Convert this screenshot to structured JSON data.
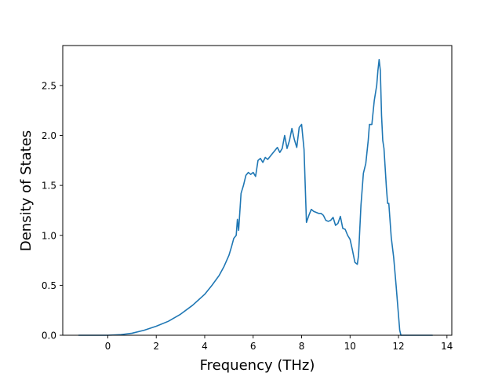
{
  "chart_data": {
    "type": "line",
    "title": "",
    "xlabel": "Frequency (THz)",
    "ylabel": "Density of States",
    "xlim": [
      -1.86,
      14.2
    ],
    "ylim": [
      0,
      2.9
    ],
    "xticks": [
      0,
      2,
      4,
      6,
      8,
      10,
      12,
      14
    ],
    "xtick_labels": [
      "0",
      "2",
      "4",
      "6",
      "8",
      "10",
      "12",
      "14"
    ],
    "yticks": [
      0.0,
      0.5,
      1.0,
      1.5,
      2.0,
      2.5
    ],
    "ytick_labels": [
      "0.0",
      "0.5",
      "1.0",
      "1.5",
      "2.0",
      "2.5"
    ],
    "grid": false,
    "line_color": "#1f77b4",
    "series": [
      {
        "x": [
          -1.2,
          -0.6,
          0.0,
          0.5,
          1.0,
          1.5,
          2.0,
          2.5,
          3.0,
          3.5,
          4.0,
          4.3,
          4.6,
          4.8,
          5.0,
          5.1,
          5.2,
          5.3,
          5.35,
          5.4,
          5.5,
          5.6,
          5.7,
          5.8,
          5.9,
          6.0,
          6.1,
          6.2,
          6.3,
          6.4,
          6.5,
          6.6,
          6.7,
          6.8,
          6.9,
          7.0,
          7.1,
          7.2,
          7.3,
          7.4,
          7.5,
          7.6,
          7.7,
          7.8,
          7.9,
          8.0,
          8.1,
          8.2,
          8.3,
          8.4,
          8.5,
          8.6,
          8.7,
          8.8,
          8.9,
          9.0,
          9.1,
          9.2,
          9.3,
          9.4,
          9.5,
          9.6,
          9.7,
          9.8,
          9.9,
          10.0,
          10.1,
          10.2,
          10.3,
          10.35,
          10.45,
          10.55,
          10.65,
          10.75,
          10.8,
          10.9,
          11.0,
          11.1,
          11.15,
          11.2,
          11.25,
          11.3,
          11.35,
          11.4,
          11.5,
          11.55,
          11.6,
          11.65,
          11.7,
          11.8,
          11.9,
          12.0,
          12.05,
          12.1,
          12.2,
          12.5,
          13.0,
          13.4
        ],
        "y": [
          0.0,
          0.0,
          0.0,
          0.005,
          0.02,
          0.05,
          0.09,
          0.14,
          0.21,
          0.3,
          0.41,
          0.5,
          0.6,
          0.69,
          0.8,
          0.88,
          0.97,
          1.0,
          1.16,
          1.05,
          1.42,
          1.5,
          1.6,
          1.63,
          1.61,
          1.63,
          1.59,
          1.75,
          1.77,
          1.73,
          1.78,
          1.76,
          1.79,
          1.82,
          1.85,
          1.88,
          1.83,
          1.87,
          2.0,
          1.87,
          1.95,
          2.07,
          1.96,
          1.88,
          2.08,
          2.11,
          1.86,
          1.13,
          1.2,
          1.26,
          1.24,
          1.23,
          1.22,
          1.22,
          1.2,
          1.15,
          1.14,
          1.15,
          1.18,
          1.1,
          1.12,
          1.19,
          1.07,
          1.06,
          1.0,
          0.96,
          0.85,
          0.73,
          0.71,
          0.8,
          1.3,
          1.62,
          1.72,
          1.95,
          2.11,
          2.11,
          2.35,
          2.5,
          2.65,
          2.76,
          2.65,
          2.2,
          1.95,
          1.87,
          1.48,
          1.32,
          1.32,
          1.15,
          0.98,
          0.78,
          0.5,
          0.2,
          0.05,
          0.0,
          0.0,
          0.0,
          0.0,
          0.0
        ]
      }
    ]
  }
}
